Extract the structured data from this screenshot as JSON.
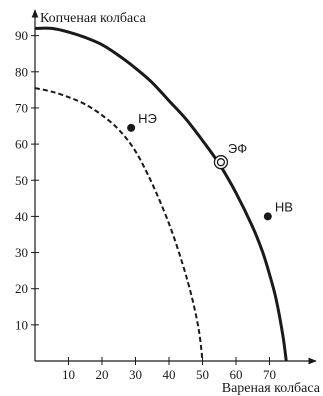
{
  "chart_data": {
    "type": "line",
    "xlabel": "Вареная колбаса",
    "ylabel": "Копченая колбаса",
    "xlim": [
      0,
      80
    ],
    "ylim": [
      0,
      95
    ],
    "x_ticks": [
      10,
      20,
      30,
      40,
      50,
      60,
      70
    ],
    "y_ticks": [
      10,
      20,
      30,
      40,
      50,
      60,
      70,
      80,
      90
    ],
    "grid": false,
    "series": [
      {
        "style": "solid",
        "x": [
          0,
          5,
          10,
          15,
          20,
          25,
          30,
          35,
          40,
          45,
          50,
          55,
          60,
          65,
          68,
          70,
          72,
          74,
          75
        ],
        "y": [
          92,
          92,
          91,
          89.5,
          87.5,
          84.5,
          81,
          77,
          72,
          67,
          61,
          54.5,
          46.5,
          37,
          30,
          24,
          17,
          7,
          0
        ]
      },
      {
        "style": "dashed",
        "x": [
          0,
          5,
          10,
          15,
          20,
          25,
          30,
          35,
          40,
          44,
          47,
          49,
          50
        ],
        "y": [
          75.5,
          74.5,
          73,
          71,
          68,
          64,
          58,
          49,
          38,
          27,
          17,
          8,
          0
        ]
      }
    ],
    "points": [
      {
        "label": "НЭ",
        "x": 28.7,
        "y": 64.5,
        "marker": "dot"
      },
      {
        "label": "ЭФ",
        "x": 55.5,
        "y": 55,
        "marker": "ring"
      },
      {
        "label": "НВ",
        "x": 69.5,
        "y": 40,
        "marker": "dot"
      }
    ]
  }
}
